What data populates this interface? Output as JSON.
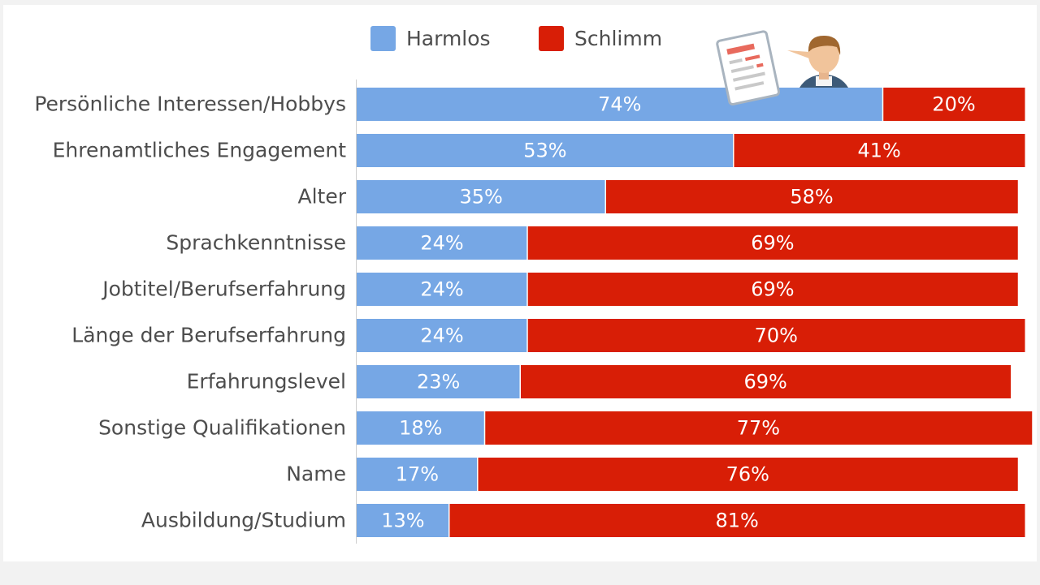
{
  "chart_data": {
    "type": "bar",
    "orientation": "horizontal",
    "stacked": true,
    "categories": [
      "Persönliche Interessen/Hobbys",
      "Ehrenamtliches Engagement",
      "Alter",
      "Sprachkenntnisse",
      "Jobtitel/Berufserfahrung",
      "Länge der Berufserfahrung",
      "Erfahrungslevel",
      "Sonstige Qualifikationen",
      "Name",
      "Ausbildung/Studium"
    ],
    "series": [
      {
        "name": "Harmlos",
        "color": "#76a7e5",
        "values": [
          74,
          53,
          35,
          24,
          24,
          24,
          23,
          18,
          17,
          13
        ]
      },
      {
        "name": "Schlimm",
        "color": "#d81e06",
        "values": [
          20,
          41,
          58,
          69,
          69,
          70,
          69,
          77,
          76,
          81
        ]
      }
    ],
    "value_suffix": "%",
    "xlim": [
      0,
      100
    ],
    "legend_position": "top-center",
    "grid": false,
    "decoration_icons": [
      "resume-document-icon",
      "person-icon"
    ]
  }
}
